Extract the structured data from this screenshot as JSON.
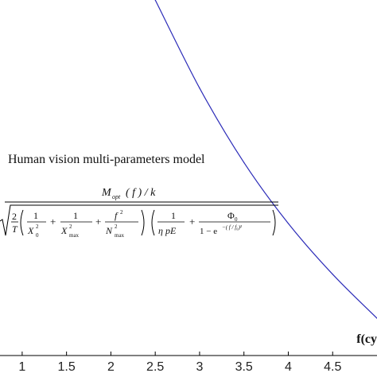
{
  "chart_data": {
    "type": "line",
    "x": [
      2.5,
      3.0,
      3.5,
      4.0,
      4.5,
      5.0
    ],
    "series": [
      {
        "values": [
          1.0,
          0.74,
          0.52,
          0.34,
          0.19,
          0.06
        ]
      }
    ],
    "xticks": [
      "1",
      "1.5",
      "2",
      "2.5",
      "3",
      "3.5",
      "4",
      "4.5"
    ],
    "xlim": [
      0.75,
      5.0
    ],
    "ylim": [
      -0.05,
      1.0
    ],
    "xlabel": "f(cy",
    "grid": false,
    "line_color": "#2b2bb8",
    "annotation": "Human vision multi-parameters model",
    "formula": {
      "numerator": "M_opt(f) / k",
      "denominator": "√( 2/T ( 1/X0² + 1/X²max + f²/N²max ) ( 1/(η p E) + Φ0 / (1 − e^−(f/f0)²) ) )"
    }
  }
}
